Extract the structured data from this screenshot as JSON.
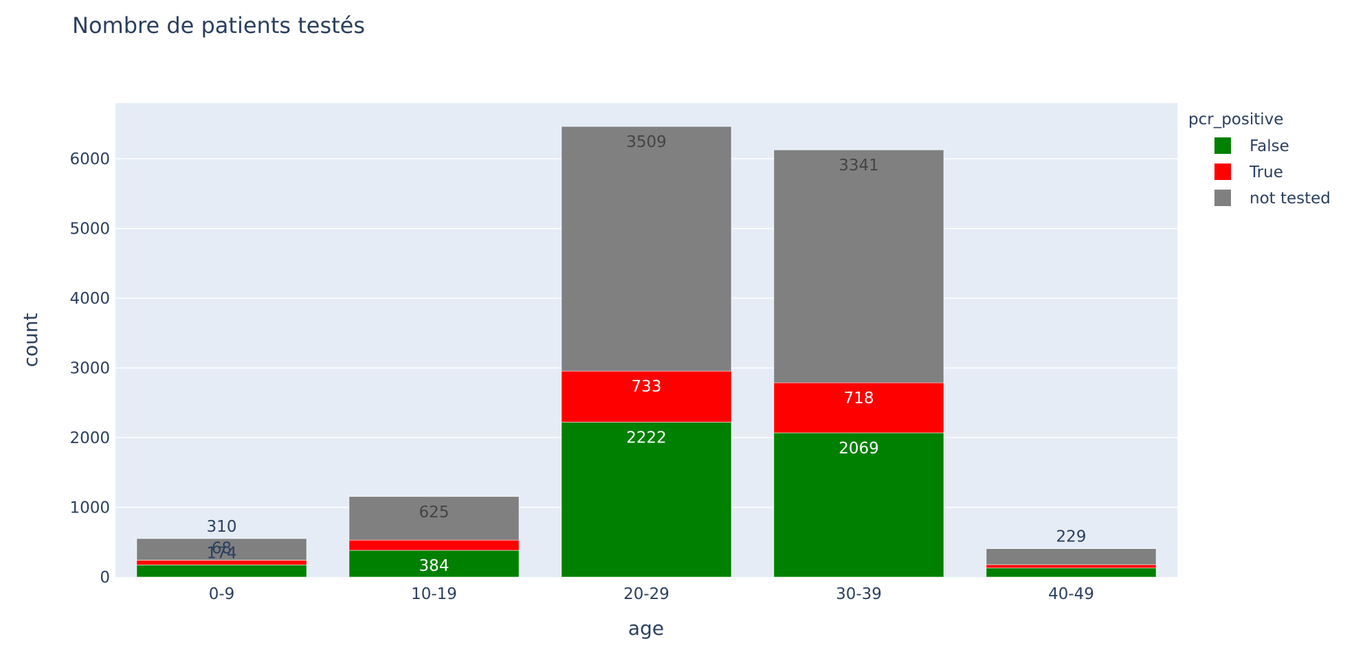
{
  "chart_data": {
    "type": "bar",
    "barmode": "stack",
    "title": "Nombre de patients testés",
    "xlabel": "age",
    "ylabel": "count",
    "categories": [
      "0-9",
      "10-19",
      "20-29",
      "30-39",
      "40-49"
    ],
    "ylim": [
      0,
      6800
    ],
    "yticks": [
      0,
      1000,
      2000,
      3000,
      4000,
      5000,
      6000
    ],
    "grid": true,
    "legend": {
      "title": "pcr_positive",
      "position": "top-right"
    },
    "series": [
      {
        "name": "False",
        "color": "#008000",
        "values": [
          174,
          384,
          2222,
          2069,
          130
        ],
        "labels": [
          "174",
          "384",
          "2222",
          "2069",
          ""
        ],
        "label_color": "#ffffff"
      },
      {
        "name": "True",
        "color": "#ff0000",
        "values": [
          68,
          146,
          733,
          718,
          48
        ],
        "labels": [
          "68",
          "",
          "733",
          "718",
          ""
        ],
        "label_color": "#ffffff"
      },
      {
        "name": "not tested",
        "color": "#808080",
        "values": [
          310,
          625,
          3509,
          3341,
          229
        ],
        "labels": [
          "310",
          "625",
          "3509",
          "3341",
          "229"
        ],
        "label_color": "#444444"
      }
    ]
  }
}
